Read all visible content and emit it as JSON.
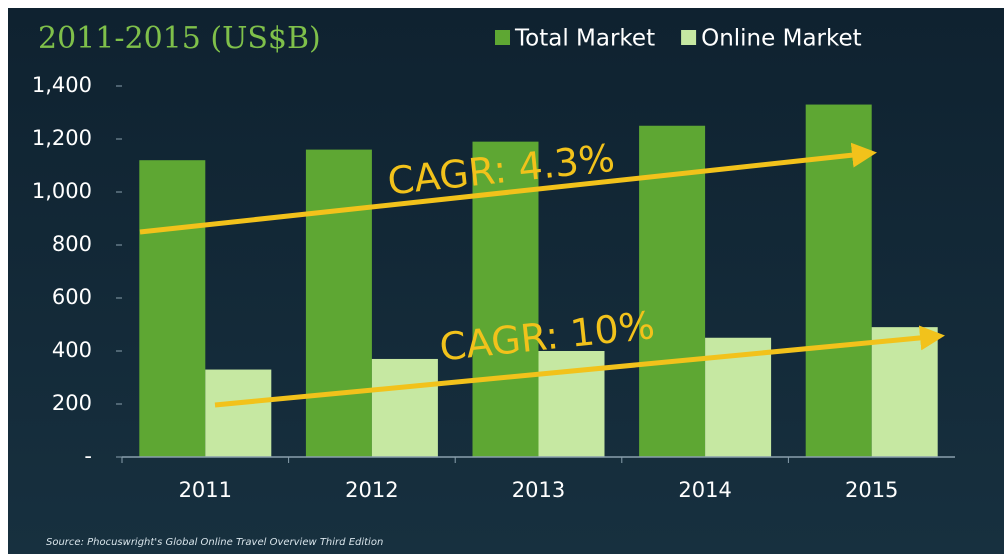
{
  "chart_data": {
    "type": "bar",
    "title": "2011-2015 (US$B)",
    "categories": [
      "2011",
      "2012",
      "2013",
      "2014",
      "2015"
    ],
    "series": [
      {
        "name": "Total Market",
        "color": "#5ea733",
        "values": [
          1120,
          1160,
          1190,
          1250,
          1330
        ]
      },
      {
        "name": "Online Market",
        "color": "#c6e8a2",
        "values": [
          330,
          370,
          400,
          450,
          490
        ]
      }
    ],
    "ylim": [
      0,
      1400
    ],
    "yticks": [
      {
        "value": 0,
        "label": "-"
      },
      200,
      400,
      600,
      800,
      {
        "value": 1000,
        "label": "1,000"
      },
      {
        "value": 1200,
        "label": "1,200"
      },
      {
        "value": 1400,
        "label": "1,400"
      }
    ],
    "grid": false,
    "legend": "top",
    "annotations": [
      "CAGR: 4.3%",
      "CAGR: 10%"
    ],
    "source": "Source: Phocuswright's Global Online Travel Overview Third Edition"
  }
}
